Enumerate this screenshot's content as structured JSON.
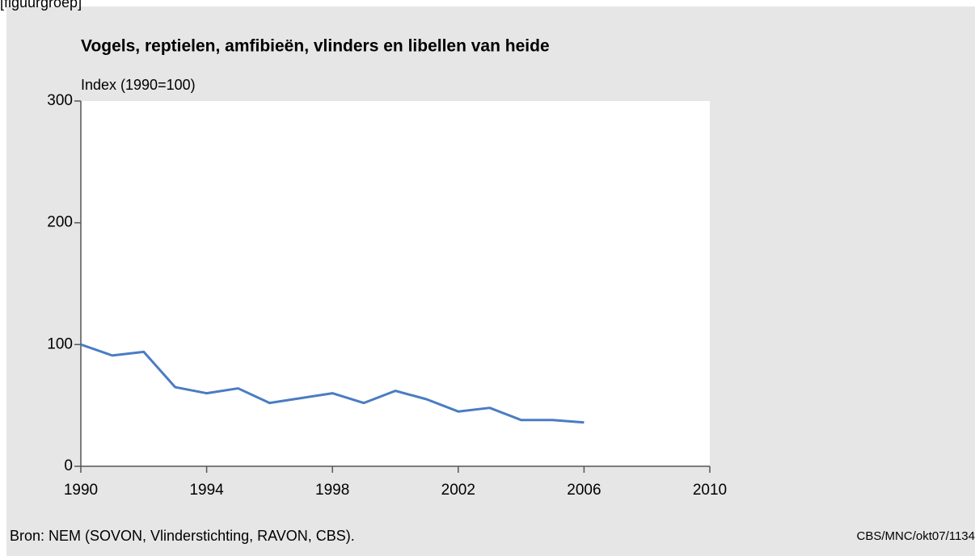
{
  "caption": "[figuurgroep]",
  "chart_data": {
    "type": "line",
    "title": "Vogels, reptielen, amfibieën, vlinders en libellen van heide",
    "y_label": "Index (1990=100)",
    "x": [
      1990,
      1991,
      1992,
      1993,
      1994,
      1995,
      1996,
      1997,
      1998,
      1999,
      2000,
      2001,
      2002,
      2003,
      2004,
      2005,
      2006
    ],
    "series": [
      {
        "name": "Index",
        "color": "#4a7cc2",
        "values": [
          100,
          91,
          94,
          65,
          60,
          64,
          52,
          56,
          60,
          52,
          62,
          55,
          45,
          48,
          38,
          38,
          36
        ]
      }
    ],
    "xlim": [
      1990,
      2010
    ],
    "xticks": [
      1990,
      1994,
      1998,
      2002,
      2006,
      2010
    ],
    "ylim": [
      0,
      300
    ],
    "yticks": [
      0,
      100,
      200,
      300
    ],
    "source": "Bron: NEM (SOVON, Vlinderstichting, RAVON, CBS).",
    "credit": "CBS/MNC/okt07/1134"
  }
}
